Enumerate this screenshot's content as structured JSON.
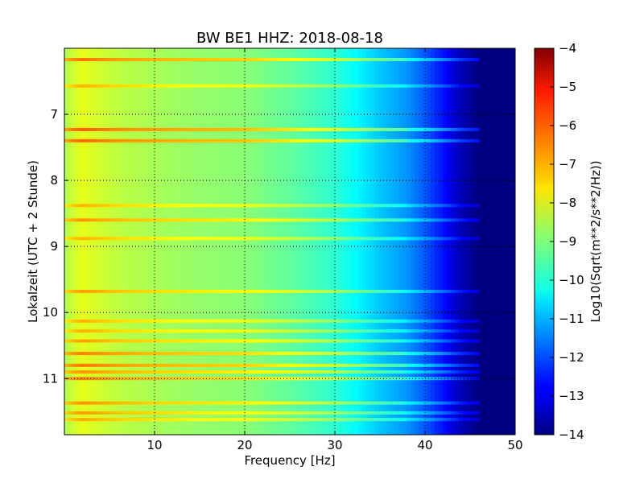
{
  "chart_data": {
    "type": "heatmap",
    "title": "BW BE1 HHZ: 2018-08-18",
    "xlabel": "Frequency [Hz]",
    "ylabel": "Lokalzeit (UTC + 2 Stunde)",
    "xlim": [
      0,
      50
    ],
    "ylim": [
      6.0,
      11.85
    ],
    "y_inverted": true,
    "grid": true,
    "x_ticks": [
      10,
      20,
      30,
      40,
      50
    ],
    "x_tick_labels": [
      "10",
      "20",
      "30",
      "40",
      "50"
    ],
    "y_ticks": [
      7,
      8,
      9,
      10,
      11
    ],
    "y_tick_labels": [
      "7",
      "8",
      "9",
      "10",
      "11"
    ],
    "colorbar": {
      "label": "Log10(Sqrt(m**2/s**2/Hz))",
      "range": [
        -14,
        -4
      ],
      "ticks": [
        -4,
        -5,
        -6,
        -7,
        -8,
        -9,
        -10,
        -11,
        -12,
        -13,
        -14
      ],
      "tick_labels": [
        "−4",
        "−5",
        "−6",
        "−7",
        "−8",
        "−9",
        "−10",
        "−11",
        "−12",
        "−13",
        "−14"
      ],
      "colormap": "jet"
    },
    "frequency_profile": {
      "frequency_hz": [
        0,
        1,
        2,
        4,
        6,
        10,
        15,
        20,
        25,
        30,
        32,
        35,
        38,
        40,
        42,
        44,
        46,
        50
      ],
      "log_amplitude": [
        -8.6,
        -8.2,
        -8.0,
        -8.2,
        -8.4,
        -8.6,
        -8.8,
        -8.9,
        -9.3,
        -9.8,
        -10.2,
        -10.8,
        -11.3,
        -11.9,
        -12.6,
        -13.5,
        -14,
        -14
      ]
    },
    "event_bands": {
      "time_hours": [
        6.17,
        6.57,
        7.23,
        7.4,
        8.38,
        8.6,
        8.88,
        9.68,
        10.13,
        10.28,
        10.43,
        10.62,
        10.8,
        10.9,
        11.0,
        11.37,
        11.52,
        11.62
      ],
      "log_amplitude_offset": [
        1.6,
        1.0,
        1.8,
        1.7,
        1.0,
        1.3,
        1.0,
        1.2,
        1.0,
        1.0,
        1.2,
        1.5,
        1.6,
        1.3,
        1.5,
        1.3,
        1.2,
        1.1
      ]
    }
  }
}
